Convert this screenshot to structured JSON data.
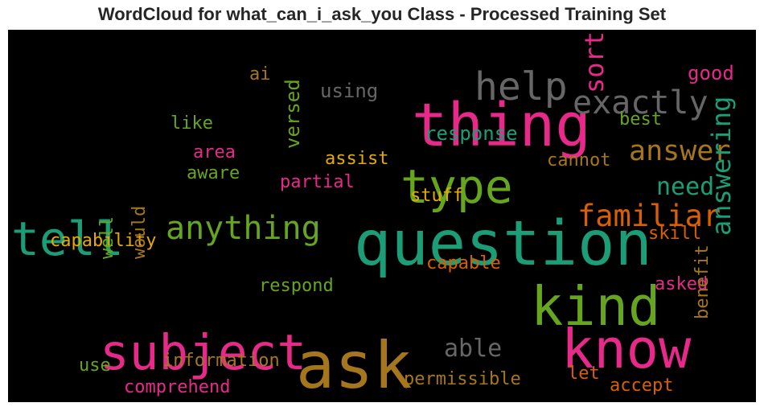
{
  "title": "WordCloud for what_can_i_ask_you Class - Processed Training Set",
  "chart_data": {
    "type": "wordcloud",
    "background": "#000000",
    "palette": {
      "magenta": "#e7298a",
      "teal": "#1b9e77",
      "olive": "#66a61e",
      "gold": "#a6761d",
      "orange": "#d95f02",
      "yellow": "#e6ab02",
      "gray": "#666666"
    },
    "words": [
      {
        "text": "ask",
        "weight": 1.0,
        "color": "gold",
        "rotate": false
      },
      {
        "text": "question",
        "weight": 0.96,
        "color": "teal",
        "rotate": false
      },
      {
        "text": "thing",
        "weight": 0.92,
        "color": "magenta",
        "rotate": false
      },
      {
        "text": "kind",
        "weight": 0.84,
        "color": "olive",
        "rotate": false
      },
      {
        "text": "know",
        "weight": 0.84,
        "color": "magenta",
        "rotate": false
      },
      {
        "text": "subject",
        "weight": 0.76,
        "color": "magenta",
        "rotate": false
      },
      {
        "text": "type",
        "weight": 0.72,
        "color": "olive",
        "rotate": false
      },
      {
        "text": "tell",
        "weight": 0.72,
        "color": "teal",
        "rotate": false
      },
      {
        "text": "help",
        "weight": 0.6,
        "color": "gray",
        "rotate": false
      },
      {
        "text": "exactly",
        "weight": 0.5,
        "color": "gray",
        "rotate": false
      },
      {
        "text": "anything",
        "weight": 0.5,
        "color": "olive",
        "rotate": false
      },
      {
        "text": "familiar",
        "weight": 0.46,
        "color": "orange",
        "rotate": false
      },
      {
        "text": "answer",
        "weight": 0.44,
        "color": "gold",
        "rotate": false
      },
      {
        "text": "sort",
        "weight": 0.4,
        "color": "magenta",
        "rotate": true
      },
      {
        "text": "answering",
        "weight": 0.4,
        "color": "teal",
        "rotate": true
      },
      {
        "text": "need",
        "weight": 0.38,
        "color": "teal",
        "rotate": false
      },
      {
        "text": "able",
        "weight": 0.38,
        "color": "gray",
        "rotate": false
      },
      {
        "text": "response",
        "weight": 0.3,
        "color": "teal",
        "rotate": false
      },
      {
        "text": "versed",
        "weight": 0.3,
        "color": "olive",
        "rotate": true
      },
      {
        "text": "using",
        "weight": 0.3,
        "color": "gray",
        "rotate": false
      },
      {
        "text": "good",
        "weight": 0.3,
        "color": "magenta",
        "rotate": false
      },
      {
        "text": "ai",
        "weight": 0.28,
        "color": "gold",
        "rotate": false
      },
      {
        "text": "like",
        "weight": 0.28,
        "color": "olive",
        "rotate": false
      },
      {
        "text": "best",
        "weight": 0.28,
        "color": "olive",
        "rotate": false
      },
      {
        "text": "area",
        "weight": 0.28,
        "color": "magenta",
        "rotate": false
      },
      {
        "text": "assist",
        "weight": 0.28,
        "color": "yellow",
        "rotate": false
      },
      {
        "text": "aware",
        "weight": 0.28,
        "color": "olive",
        "rotate": false
      },
      {
        "text": "cannot",
        "weight": 0.28,
        "color": "gold",
        "rotate": false
      },
      {
        "text": "partial",
        "weight": 0.28,
        "color": "magenta",
        "rotate": false
      },
      {
        "text": "stuff",
        "weight": 0.28,
        "color": "yellow",
        "rotate": false
      },
      {
        "text": "capability",
        "weight": 0.28,
        "color": "yellow",
        "rotate": false
      },
      {
        "text": "skill",
        "weight": 0.28,
        "color": "orange",
        "rotate": false
      },
      {
        "text": "capable",
        "weight": 0.28,
        "color": "orange",
        "rotate": false
      },
      {
        "text": "well",
        "weight": 0.28,
        "color": "olive",
        "rotate": true
      },
      {
        "text": "would",
        "weight": 0.28,
        "color": "gold",
        "rotate": true
      },
      {
        "text": "respond",
        "weight": 0.28,
        "color": "olive",
        "rotate": false
      },
      {
        "text": "asked",
        "weight": 0.28,
        "color": "magenta",
        "rotate": false
      },
      {
        "text": "benefit",
        "weight": 0.28,
        "color": "gold",
        "rotate": true
      },
      {
        "text": "information",
        "weight": 0.28,
        "color": "gold",
        "rotate": false
      },
      {
        "text": "use",
        "weight": 0.28,
        "color": "olive",
        "rotate": false
      },
      {
        "text": "let",
        "weight": 0.28,
        "color": "orange",
        "rotate": false
      },
      {
        "text": "comprehend",
        "weight": 0.28,
        "color": "magenta",
        "rotate": false
      },
      {
        "text": "permissible",
        "weight": 0.28,
        "color": "gold",
        "rotate": false
      },
      {
        "text": "accept",
        "weight": 0.28,
        "color": "orange",
        "rotate": false
      }
    ]
  }
}
